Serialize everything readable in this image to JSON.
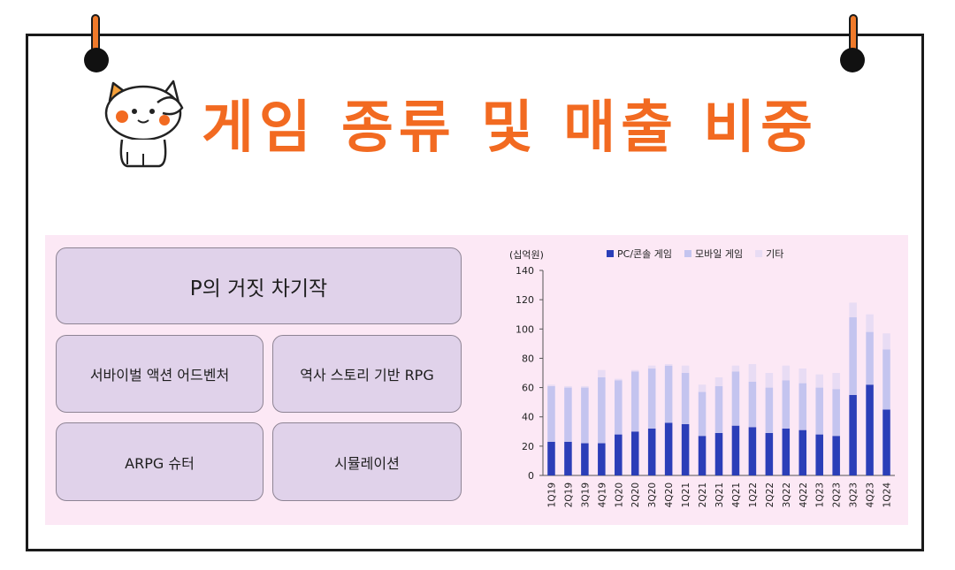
{
  "title": "게임 종류 및 매출 비중",
  "genres": {
    "main": "P의 거짓 차기작",
    "items": [
      "서바이벌 액션 어드벤처",
      "역사 스토리 기반 RPG",
      "ARPG 슈터",
      "시뮬레이션"
    ]
  },
  "colors": {
    "accent": "#f26a21",
    "box": "#e0d2ea",
    "panel": "#fce8f5",
    "pc": "#2b3eb8",
    "mobile": "#c4c4ef",
    "other": "#e8dcf4"
  },
  "chart_data": {
    "type": "bar",
    "stacked": true,
    "unit_label": "(십억원)",
    "ylim": [
      0,
      140
    ],
    "yticks": [
      0,
      20,
      40,
      60,
      80,
      100,
      120,
      140
    ],
    "categories": [
      "1Q19",
      "2Q19",
      "3Q19",
      "4Q19",
      "1Q20",
      "2Q20",
      "3Q20",
      "4Q20",
      "1Q21",
      "2Q21",
      "3Q21",
      "4Q21",
      "1Q22",
      "2Q22",
      "3Q22",
      "4Q22",
      "1Q23",
      "2Q23",
      "3Q23",
      "4Q23",
      "1Q24"
    ],
    "series": [
      {
        "name": "PC/콘솔 게임",
        "values": [
          23,
          23,
          22,
          22,
          28,
          30,
          32,
          36,
          35,
          27,
          29,
          34,
          33,
          29,
          32,
          31,
          28,
          27,
          55,
          62,
          45
        ]
      },
      {
        "name": "모바일 게임",
        "values": [
          38,
          37,
          38,
          45,
          37,
          41,
          41,
          39,
          35,
          30,
          32,
          37,
          31,
          31,
          33,
          32,
          32,
          32,
          53,
          36,
          41
        ]
      },
      {
        "name": "기타",
        "values": [
          1,
          1,
          1,
          5,
          1,
          1,
          2,
          1,
          5,
          5,
          6,
          4,
          12,
          10,
          10,
          10,
          9,
          11,
          10,
          12,
          11
        ]
      }
    ],
    "legend_position": "top"
  }
}
